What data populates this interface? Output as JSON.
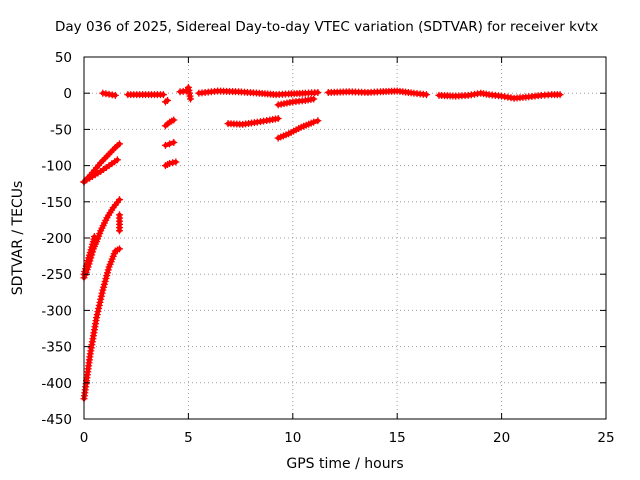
{
  "chart_data": {
    "type": "scatter",
    "title": "Day 036 of 2025, Sidereal Day-to-day VTEC variation (SDTVAR) for receiver kvtx",
    "xlabel": "GPS time / hours",
    "ylabel": "SDTVAR / TECUs",
    "xlim": [
      0,
      25
    ],
    "ylim": [
      -450,
      50
    ],
    "xticks": [
      "0",
      "5",
      "10",
      "15",
      "20",
      "25"
    ],
    "yticks": [
      "50",
      "0",
      "-50",
      "-100",
      "-150",
      "-200",
      "-250",
      "-300",
      "-350",
      "-400",
      "-450"
    ],
    "grid": true,
    "marker": "plus",
    "color": "#ff0000",
    "series": [
      {
        "segments": [
          [
            [
              0.0,
              -422
            ],
            [
              0.3,
              -360
            ],
            [
              0.6,
              -310
            ],
            [
              0.9,
              -272
            ],
            [
              1.2,
              -240
            ],
            [
              1.5,
              -218
            ],
            [
              1.7,
              -215
            ]
          ],
          [
            [
              0.0,
              -255
            ],
            [
              0.2,
              -240
            ],
            [
              0.45,
              -215
            ],
            [
              0.6,
              -205
            ],
            [
              0.8,
              -190
            ],
            [
              1.1,
              -172
            ],
            [
              1.4,
              -158
            ],
            [
              1.7,
              -147
            ]
          ],
          [
            [
              0.0,
              -250
            ],
            [
              0.15,
              -235
            ],
            [
              0.3,
              -220
            ],
            [
              0.45,
              -205
            ],
            [
              0.5,
              -198
            ]
          ],
          [
            [
              0.0,
              -122
            ],
            [
              0.4,
              -115
            ],
            [
              0.8,
              -108
            ],
            [
              1.2,
              -100
            ],
            [
              1.6,
              -92
            ]
          ],
          [
            [
              0.0,
              -123
            ],
            [
              0.4,
              -110
            ],
            [
              0.8,
              -96
            ],
            [
              1.2,
              -84
            ],
            [
              1.5,
              -75
            ],
            [
              1.7,
              -70
            ]
          ],
          [
            [
              1.7,
              -168
            ],
            [
              1.7,
              -190
            ]
          ],
          [
            [
              0.9,
              0
            ],
            [
              1.5,
              -3
            ]
          ],
          [
            [
              2.1,
              -2
            ],
            [
              3.8,
              -2
            ]
          ],
          [
            [
              3.9,
              -12
            ],
            [
              4.0,
              -10
            ]
          ],
          [
            [
              3.9,
              -45
            ],
            [
              4.1,
              -40
            ],
            [
              4.3,
              -37
            ]
          ],
          [
            [
              3.9,
              -72
            ],
            [
              4.1,
              -70
            ],
            [
              4.3,
              -68
            ]
          ],
          [
            [
              3.9,
              -100
            ],
            [
              4.1,
              -97
            ],
            [
              4.4,
              -95
            ]
          ],
          [
            [
              4.6,
              2
            ],
            [
              4.9,
              3
            ],
            [
              5.0,
              8
            ],
            [
              5.1,
              -8
            ]
          ],
          [
            [
              5.5,
              0
            ],
            [
              6.4,
              3
            ],
            [
              7.4,
              2
            ],
            [
              8.4,
              0
            ],
            [
              9.2,
              -2
            ],
            [
              9.8,
              -1
            ],
            [
              10.6,
              0
            ],
            [
              11.2,
              1
            ]
          ],
          [
            [
              6.9,
              -42
            ],
            [
              7.6,
              -43
            ],
            [
              8.3,
              -40
            ],
            [
              8.9,
              -37
            ],
            [
              9.3,
              -35
            ]
          ],
          [
            [
              9.3,
              -16
            ],
            [
              10.0,
              -12
            ],
            [
              10.6,
              -10
            ],
            [
              11.0,
              -8
            ]
          ],
          [
            [
              9.3,
              -62
            ],
            [
              9.8,
              -56
            ],
            [
              10.4,
              -47
            ],
            [
              11.0,
              -40
            ],
            [
              11.2,
              -38
            ]
          ],
          [
            [
              11.7,
              1
            ],
            [
              12.7,
              2
            ],
            [
              13.6,
              1
            ],
            [
              14.2,
              2
            ],
            [
              15.0,
              3
            ],
            [
              15.8,
              0
            ],
            [
              16.4,
              -2
            ]
          ],
          [
            [
              17.0,
              -3
            ],
            [
              17.8,
              -4
            ],
            [
              18.4,
              -3
            ],
            [
              19.0,
              0
            ],
            [
              19.4,
              -2
            ],
            [
              20.0,
              -4
            ],
            [
              20.6,
              -7
            ],
            [
              21.3,
              -5
            ],
            [
              21.9,
              -3
            ],
            [
              22.4,
              -2
            ],
            [
              22.8,
              -2
            ]
          ]
        ]
      }
    ]
  }
}
